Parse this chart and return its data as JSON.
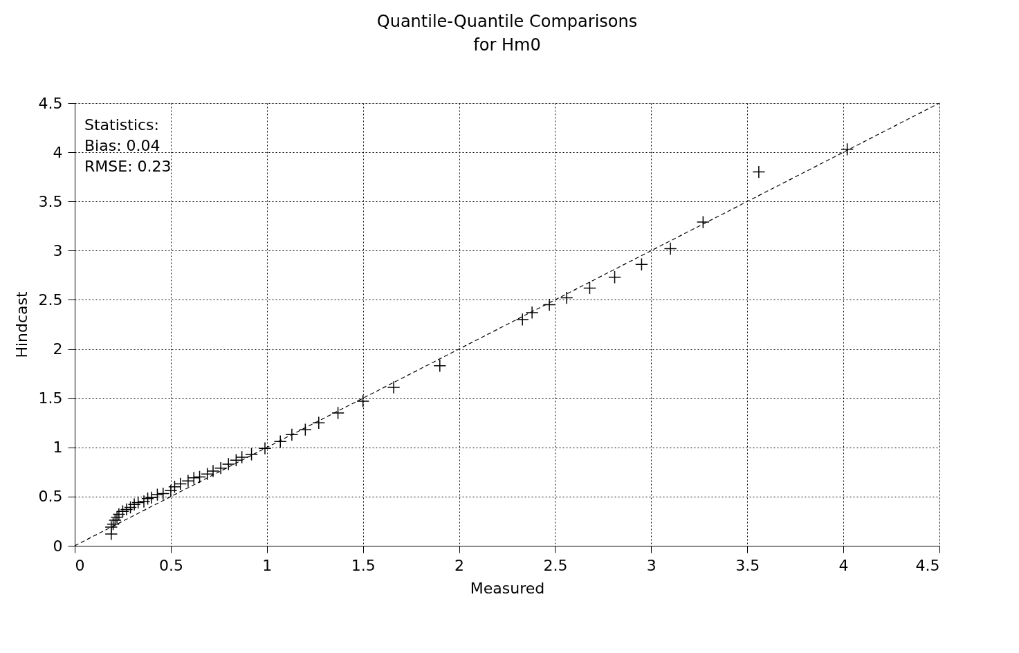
{
  "chart_data": {
    "type": "scatter",
    "title": "Quantile-Quantile Comparisons",
    "subtitle": "for Hm0",
    "xlabel": "Measured",
    "ylabel": "Hindcast",
    "xlim": [
      0,
      4.5
    ],
    "ylim": [
      0,
      4.5
    ],
    "xticks": [
      0,
      0.5,
      1,
      1.5,
      2,
      2.5,
      3,
      3.5,
      4,
      4.5
    ],
    "yticks": [
      0,
      0.5,
      1,
      1.5,
      2,
      2.5,
      3,
      3.5,
      4,
      4.5
    ],
    "grid": true,
    "annotations": [
      "Statistics:",
      "Bias:  0.04",
      "RMSE:  0.23"
    ],
    "series": [
      {
        "marker": "cross",
        "color": "#000000",
        "x": [
          0.19,
          0.19,
          0.2,
          0.21,
          0.22,
          0.23,
          0.25,
          0.27,
          0.29,
          0.31,
          0.33,
          0.36,
          0.38,
          0.4,
          0.43,
          0.46,
          0.5,
          0.52,
          0.55,
          0.59,
          0.62,
          0.65,
          0.69,
          0.72,
          0.76,
          0.8,
          0.84,
          0.87,
          0.92,
          0.99,
          1.07,
          1.13,
          1.2,
          1.27,
          1.37,
          1.5,
          1.66,
          1.9,
          2.33,
          2.38,
          2.47,
          2.56,
          2.68,
          2.81,
          2.95,
          3.1,
          3.27,
          3.56,
          4.02
        ],
        "values": [
          0.12,
          0.19,
          0.22,
          0.26,
          0.29,
          0.32,
          0.35,
          0.37,
          0.39,
          0.42,
          0.44,
          0.45,
          0.48,
          0.49,
          0.52,
          0.53,
          0.56,
          0.6,
          0.63,
          0.66,
          0.69,
          0.7,
          0.73,
          0.76,
          0.79,
          0.83,
          0.87,
          0.9,
          0.93,
          0.99,
          1.06,
          1.13,
          1.18,
          1.25,
          1.35,
          1.47,
          1.61,
          1.83,
          2.3,
          2.37,
          2.45,
          2.52,
          2.62,
          2.73,
          2.86,
          3.02,
          3.29,
          3.8,
          4.03
        ]
      },
      {
        "type": "line",
        "line_style": "dashed",
        "color": "#000000",
        "x": [
          0,
          4.5
        ],
        "values": [
          0,
          4.5
        ]
      }
    ]
  }
}
